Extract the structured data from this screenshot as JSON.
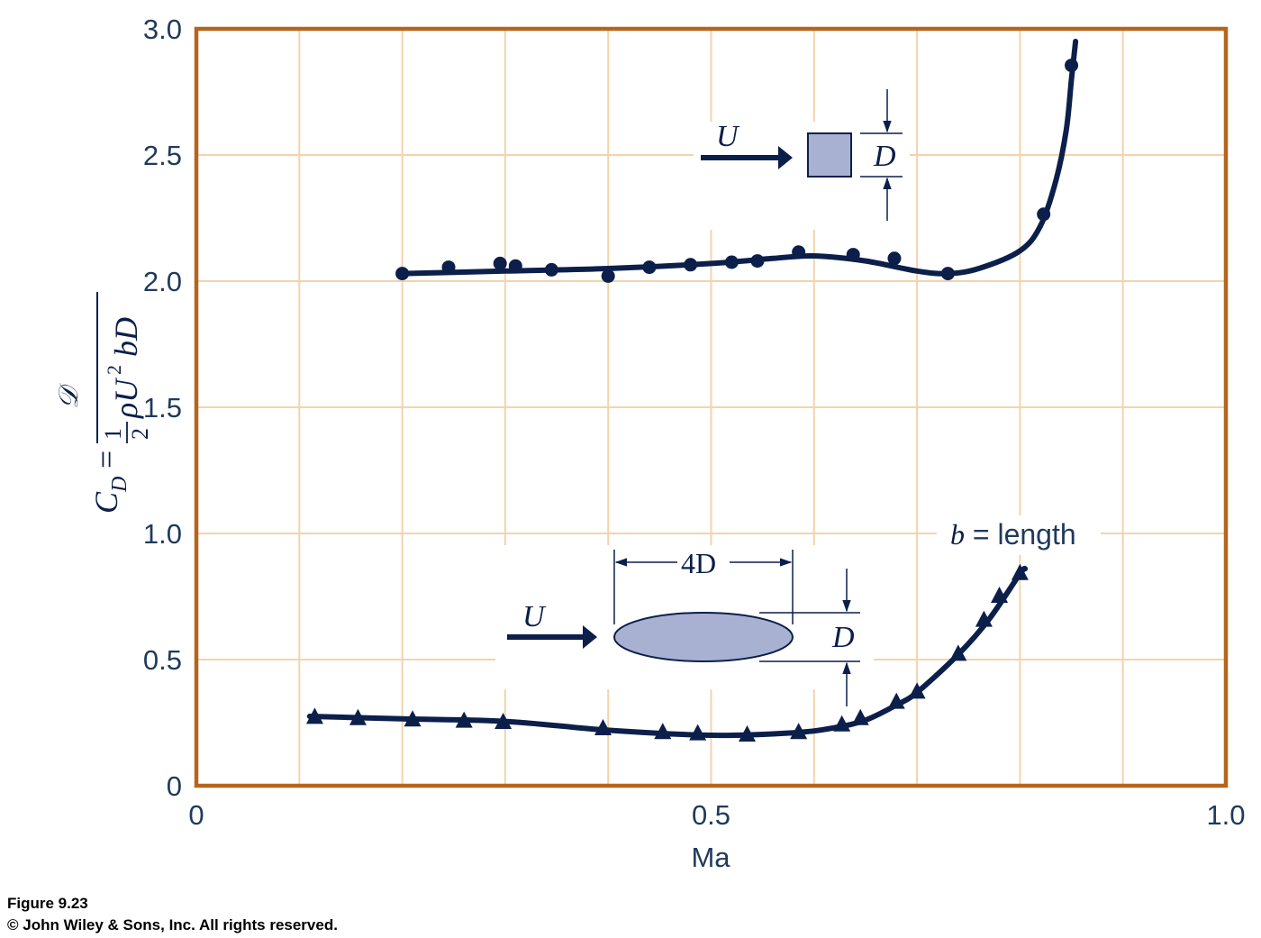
{
  "caption": {
    "figure": "Figure 9.23",
    "copyright": "© John Wiley & Sons, Inc. All rights reserved."
  },
  "colors": {
    "frame": "#b5651d",
    "grid": "#f3d3ad",
    "curve": "#0b1f4a",
    "shape_fill": "#a9b1d2",
    "text": "#1f3a5c"
  },
  "chart_data": {
    "type": "scatter",
    "xlabel": "Ma",
    "ylabel": "C_D = 𝒟 / (½ρU² bD)",
    "xlim": [
      0,
      1.0
    ],
    "ylim": [
      0,
      3.0
    ],
    "x_ticks": [
      0,
      0.5,
      1.0
    ],
    "x_tick_labels": [
      "0",
      "0.5",
      "1.0"
    ],
    "y_ticks": [
      0,
      0.5,
      1.0,
      1.5,
      2.0,
      2.5,
      3.0
    ],
    "y_tick_labels": [
      "0",
      "0.5",
      "1.0",
      "1.5",
      "2.0",
      "2.5",
      "3.0"
    ],
    "x_minor_step": 0.1,
    "y_minor_step": 0.5,
    "grid": true,
    "legend": "none",
    "series": [
      {
        "marker": "circle",
        "points": [
          [
            0.2,
            2.03
          ],
          [
            0.245,
            2.055
          ],
          [
            0.295,
            2.07
          ],
          [
            0.31,
            2.06
          ],
          [
            0.345,
            2.045
          ],
          [
            0.4,
            2.02
          ],
          [
            0.44,
            2.055
          ],
          [
            0.48,
            2.065
          ],
          [
            0.52,
            2.075
          ],
          [
            0.545,
            2.08
          ],
          [
            0.585,
            2.115
          ],
          [
            0.638,
            2.105
          ],
          [
            0.678,
            2.09
          ],
          [
            0.73,
            2.03
          ],
          [
            0.823,
            2.265
          ],
          [
            0.85,
            2.855
          ]
        ],
        "curve": [
          [
            0.2,
            2.03
          ],
          [
            0.3,
            2.04
          ],
          [
            0.4,
            2.05
          ],
          [
            0.5,
            2.07
          ],
          [
            0.56,
            2.09
          ],
          [
            0.6,
            2.1
          ],
          [
            0.65,
            2.08
          ],
          [
            0.7,
            2.04
          ],
          [
            0.73,
            2.03
          ],
          [
            0.76,
            2.05
          ],
          [
            0.8,
            2.12
          ],
          [
            0.82,
            2.22
          ],
          [
            0.835,
            2.4
          ],
          [
            0.845,
            2.6
          ],
          [
            0.85,
            2.8
          ],
          [
            0.854,
            2.95
          ]
        ]
      },
      {
        "marker": "triangle",
        "points": [
          [
            0.115,
            0.27
          ],
          [
            0.157,
            0.265
          ],
          [
            0.21,
            0.26
          ],
          [
            0.26,
            0.255
          ],
          [
            0.298,
            0.25
          ],
          [
            0.395,
            0.225
          ],
          [
            0.453,
            0.21
          ],
          [
            0.487,
            0.205
          ],
          [
            0.535,
            0.2
          ],
          [
            0.585,
            0.21
          ],
          [
            0.627,
            0.24
          ],
          [
            0.645,
            0.265
          ],
          [
            0.68,
            0.33
          ],
          [
            0.7,
            0.37
          ],
          [
            0.74,
            0.52
          ],
          [
            0.765,
            0.655
          ],
          [
            0.78,
            0.75
          ],
          [
            0.8,
            0.84
          ]
        ],
        "curve": [
          [
            0.11,
            0.275
          ],
          [
            0.2,
            0.265
          ],
          [
            0.3,
            0.255
          ],
          [
            0.4,
            0.22
          ],
          [
            0.5,
            0.2
          ],
          [
            0.58,
            0.21
          ],
          [
            0.62,
            0.23
          ],
          [
            0.65,
            0.26
          ],
          [
            0.68,
            0.32
          ],
          [
            0.7,
            0.37
          ],
          [
            0.74,
            0.52
          ],
          [
            0.77,
            0.66
          ],
          [
            0.8,
            0.84
          ],
          [
            0.805,
            0.86
          ]
        ]
      }
    ],
    "annotations": {
      "square": {
        "velocity": "U",
        "dimension": "D"
      },
      "ellipse": {
        "velocity": "U",
        "width": "4D",
        "dimension": "D",
        "note_var": "b",
        "note_text": " = length"
      }
    }
  }
}
